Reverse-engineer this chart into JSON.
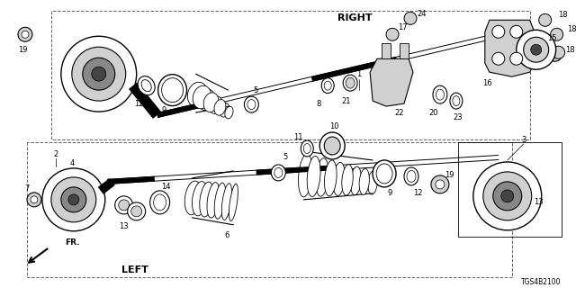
{
  "background_color": "#ffffff",
  "figsize": [
    6.4,
    3.2
  ],
  "dpi": 100,
  "right_label": "RIGHT",
  "left_label": "LEFT",
  "fr_label": "FR.",
  "footer_code": "TGS4B2100",
  "gray_light": "#d0d0d0",
  "gray_mid": "#888888",
  "gray_dark": "#444444",
  "black": "#000000",
  "white": "#ffffff"
}
